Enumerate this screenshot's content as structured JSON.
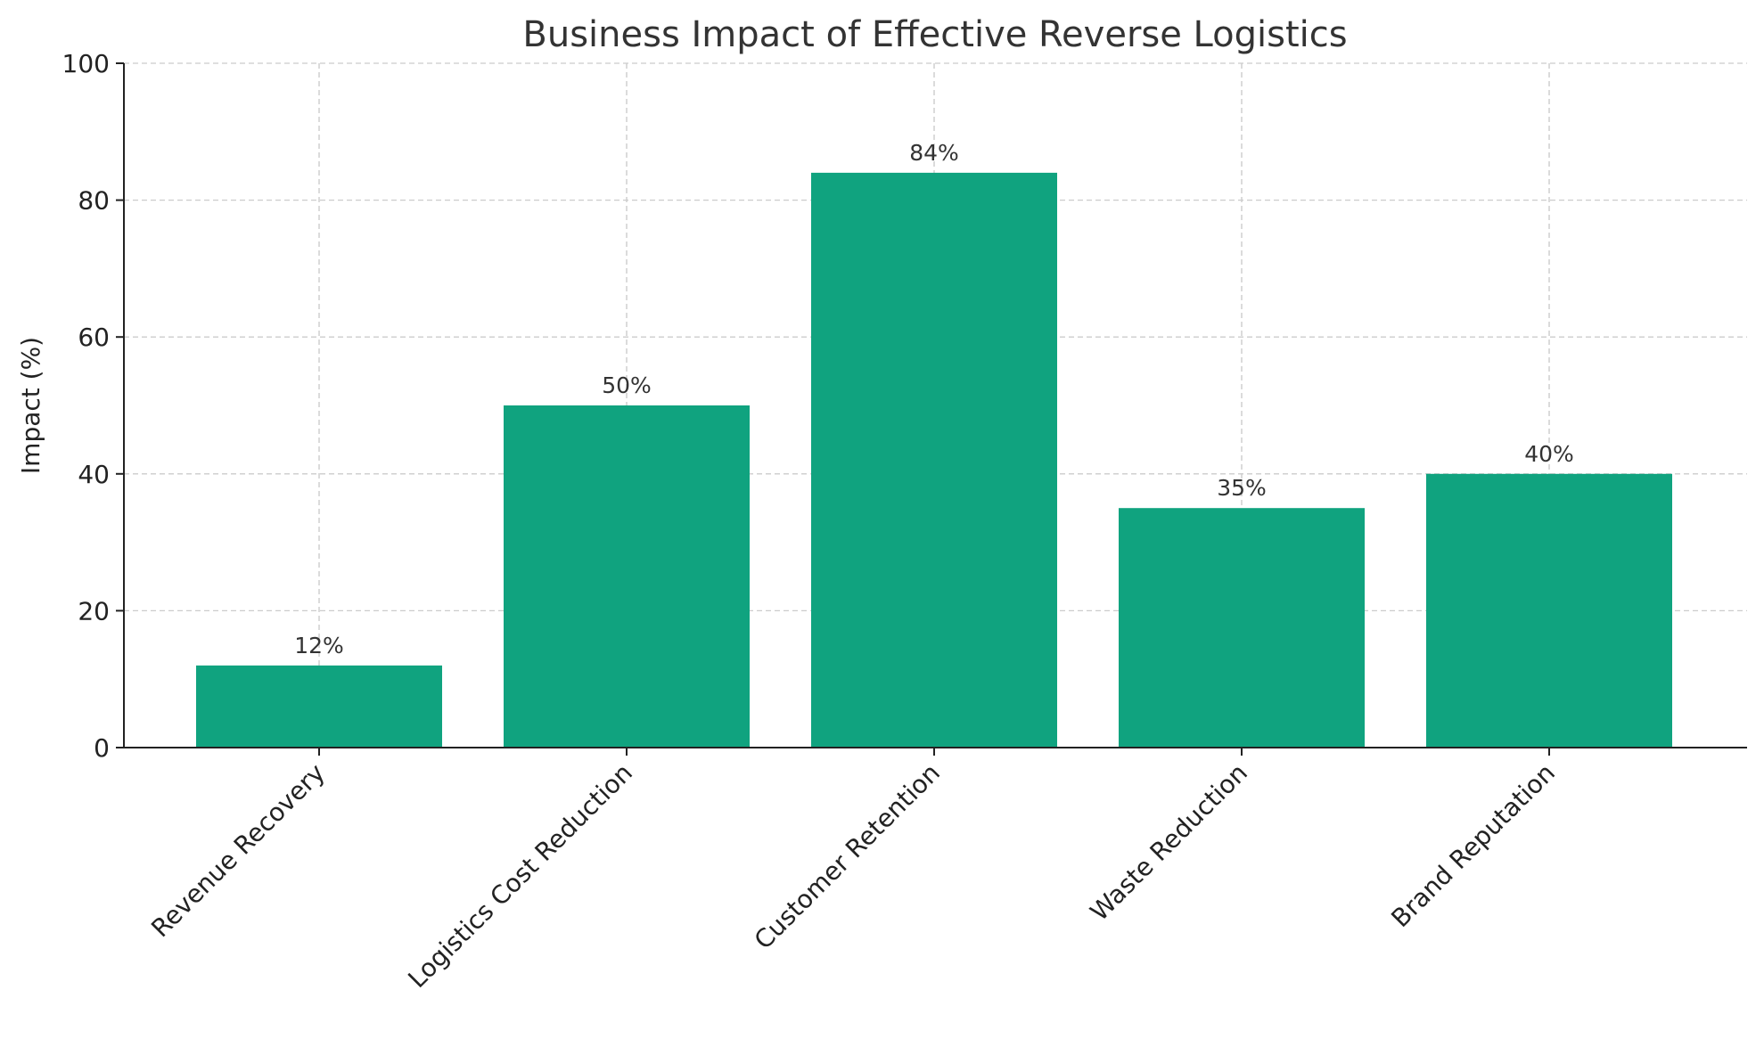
{
  "chart_data": {
    "type": "bar",
    "title": "Business Impact of Effective Reverse Logistics",
    "xlabel": "",
    "ylabel": "Impact (%)",
    "categories": [
      "Revenue Recovery",
      "Logistics Cost Reduction",
      "Customer Retention",
      "Waste Reduction",
      "Brand Reputation"
    ],
    "values": [
      12,
      50,
      84,
      35,
      40
    ],
    "data_labels": [
      "12%",
      "50%",
      "84%",
      "35%",
      "40%"
    ],
    "ylim": [
      0,
      100
    ],
    "yticks": [
      0,
      20,
      40,
      60,
      80,
      100
    ],
    "ytick_labels": [
      "0",
      "20",
      "40",
      "60",
      "80",
      "100"
    ],
    "grid": true,
    "bar_color": "#10a37f"
  }
}
